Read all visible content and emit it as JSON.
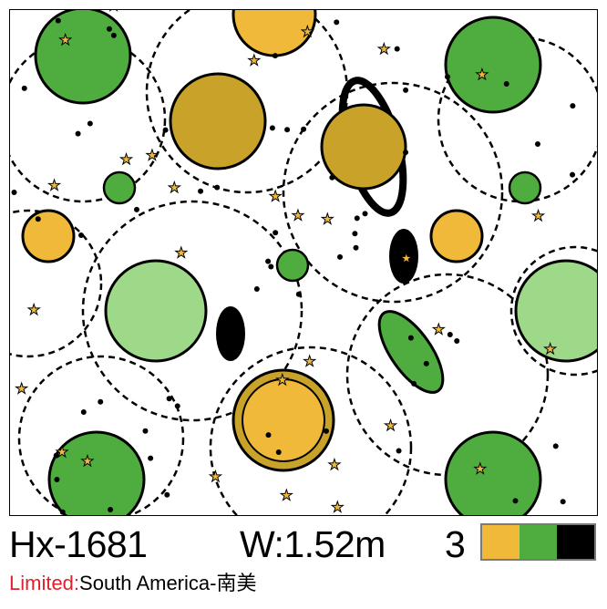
{
  "product": {
    "code": "Hx-1681",
    "width": "W:1.52m",
    "color_count": "3",
    "swatches": [
      "#f0b93a",
      "#4fad3f",
      "#000000"
    ],
    "limited_label": "Limited:",
    "limited_value": "South America-南美"
  },
  "pattern": {
    "colors": {
      "green": "#4fad3f",
      "light_green": "#9ed98a",
      "dark_green": "#2f7a2a",
      "yellow": "#f0b93a",
      "mustard": "#c9a22a",
      "black": "#000000"
    }
  }
}
